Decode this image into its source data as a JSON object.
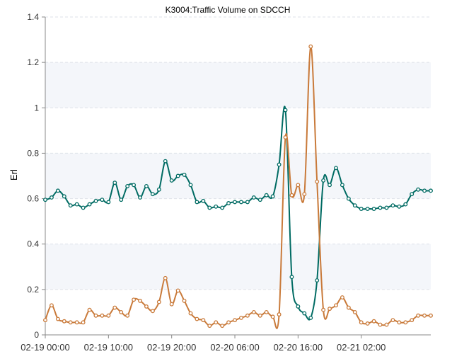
{
  "chart_data": {
    "type": "line",
    "title": "K3004:Traffic Volume on SDCCH",
    "xlabel": "",
    "ylabel": "Erl",
    "ylim": [
      0,
      1.4
    ],
    "y_ticks": [
      "0",
      "0.2",
      "0.4",
      "0.6",
      "0.8",
      "1",
      "1.2",
      "1.4"
    ],
    "x_tick_labels": [
      "02-19 00:00",
      "02-19 10:00",
      "02-19 20:00",
      "02-20 06:00",
      "02-20 16:00",
      "02-21 02:00"
    ],
    "x_tick_index": [
      0,
      10,
      20,
      30,
      40,
      50
    ],
    "x_count": 62,
    "grid": "horizontal dashed, alternating bands",
    "series": [
      {
        "color": "#006b63",
        "values": [
          0.595,
          0.605,
          0.635,
          0.61,
          0.57,
          0.575,
          0.56,
          0.575,
          0.59,
          0.595,
          0.585,
          0.67,
          0.595,
          0.655,
          0.66,
          0.605,
          0.655,
          0.62,
          0.64,
          0.765,
          0.68,
          0.7,
          0.705,
          0.66,
          0.585,
          0.59,
          0.56,
          0.565,
          0.56,
          0.58,
          0.585,
          0.585,
          0.585,
          0.605,
          0.595,
          0.615,
          0.61,
          0.75,
          0.99,
          0.255,
          0.125,
          0.095,
          0.075,
          0.24,
          0.68,
          0.66,
          0.735,
          0.66,
          0.6,
          0.57,
          0.555,
          0.555,
          0.555,
          0.56,
          0.56,
          0.57,
          0.565,
          0.575,
          0.62,
          0.64,
          0.635,
          0.635
        ]
      },
      {
        "color": "#c97a3a",
        "values": [
          0.065,
          0.13,
          0.07,
          0.06,
          0.055,
          0.055,
          0.055,
          0.11,
          0.085,
          0.085,
          0.085,
          0.12,
          0.1,
          0.085,
          0.155,
          0.15,
          0.125,
          0.105,
          0.145,
          0.25,
          0.135,
          0.195,
          0.15,
          0.095,
          0.07,
          0.065,
          0.04,
          0.055,
          0.04,
          0.055,
          0.065,
          0.075,
          0.085,
          0.1,
          0.085,
          0.1,
          0.08,
          0.09,
          0.87,
          0.615,
          0.66,
          0.62,
          1.27,
          0.675,
          0.11,
          0.115,
          0.13,
          0.165,
          0.12,
          0.1,
          0.055,
          0.05,
          0.06,
          0.045,
          0.045,
          0.065,
          0.055,
          0.055,
          0.065,
          0.085,
          0.085,
          0.085
        ]
      }
    ]
  }
}
